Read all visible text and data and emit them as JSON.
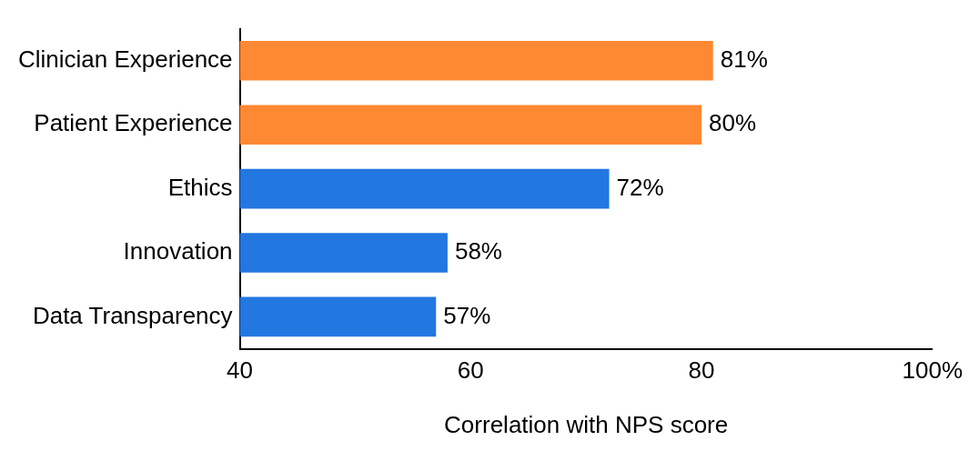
{
  "chart_data": {
    "type": "bar",
    "orientation": "horizontal",
    "xlabel": "Correlation with NPS score",
    "categories": [
      "Clinician Experience",
      "Patient Experience",
      "Ethics",
      "Innovation",
      "Data Transparency"
    ],
    "values": [
      81,
      80,
      72,
      58,
      57
    ],
    "colors": [
      "#ff8833",
      "#ff8833",
      "#2377e0",
      "#2377e0",
      "#2377e0"
    ],
    "value_labels": [
      "81%",
      "80%",
      "72%",
      "58%",
      "57%"
    ],
    "xlim": [
      40,
      100
    ],
    "xticks": [
      40,
      60,
      80,
      {
        "value": 100,
        "label": "100%"
      }
    ],
    "grid": false,
    "legend": false
  }
}
